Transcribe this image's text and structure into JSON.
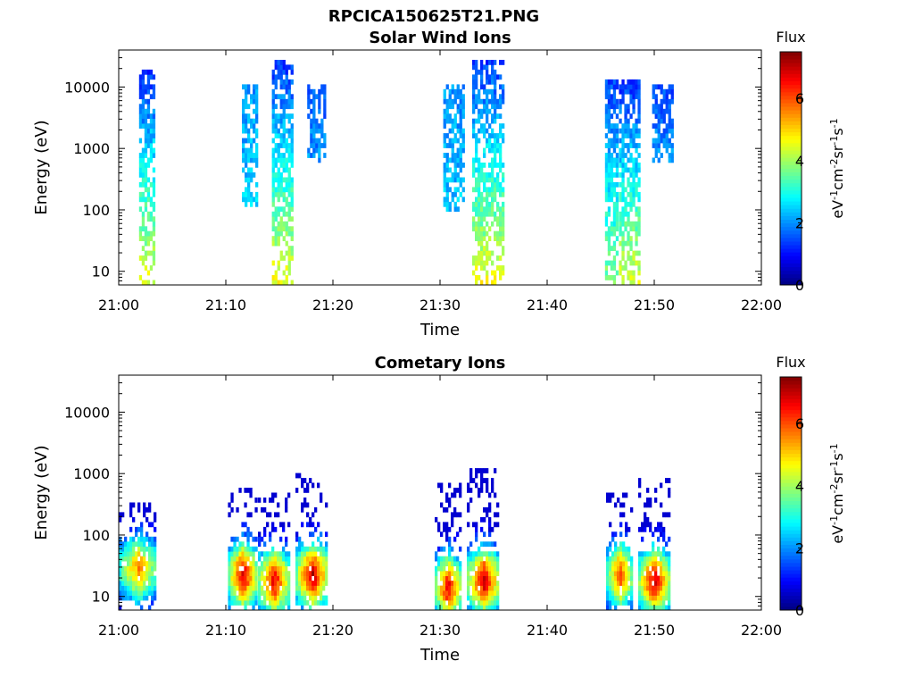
{
  "figure": {
    "title": "RPCICA150625T21.PNG"
  },
  "colormap": "jet",
  "chart_data": [
    {
      "type": "heatmap",
      "title": "Solar Wind Ions",
      "xlabel": "Time",
      "ylabel": "Energy (eV)",
      "x_ticks": [
        "21:00",
        "21:10",
        "21:20",
        "21:30",
        "21:40",
        "21:50",
        "22:00"
      ],
      "x_range_min": [
        0,
        60
      ],
      "y_ticks": [
        "10",
        "100",
        "1000",
        "10000"
      ],
      "y_scale": "log",
      "y_range": [
        6,
        40000
      ],
      "colorbar": {
        "label_top": "Flux",
        "label": "eV-1cm-2sr-1s-1",
        "ticks": [
          "0",
          "2",
          "4",
          "6"
        ],
        "range": [
          0,
          7.5
        ]
      },
      "bursts": [
        {
          "t_start_min": 1.9,
          "t_end_min": 3.4,
          "e_min_ev": 6,
          "e_max_ev": 19000,
          "flux_low_e": 4.5,
          "flux_high_e": 1.3
        },
        {
          "t_start_min": 11.5,
          "t_end_min": 13.0,
          "e_min_ev": 120,
          "e_max_ev": 11000,
          "flux_low_e": 2.5,
          "flux_high_e": 2.0
        },
        {
          "t_start_min": 14.3,
          "t_end_min": 16.2,
          "e_min_ev": 6,
          "e_max_ev": 27000,
          "flux_low_e": 4.6,
          "flux_high_e": 1.3
        },
        {
          "t_start_min": 17.6,
          "t_end_min": 19.3,
          "e_min_ev": 600,
          "e_max_ev": 12000,
          "flux_low_e": 2.0,
          "flux_high_e": 1.6
        },
        {
          "t_start_min": 30.3,
          "t_end_min": 32.2,
          "e_min_ev": 100,
          "e_max_ev": 12000,
          "flux_low_e": 2.4,
          "flux_high_e": 2.0
        },
        {
          "t_start_min": 33.0,
          "t_end_min": 35.8,
          "e_min_ev": 6,
          "e_max_ev": 27000,
          "flux_low_e": 4.6,
          "flux_high_e": 1.3
        },
        {
          "t_start_min": 45.4,
          "t_end_min": 46.6,
          "e_min_ev": 6,
          "e_max_ev": 14000,
          "flux_low_e": 3.8,
          "flux_high_e": 1.4
        },
        {
          "t_start_min": 46.7,
          "t_end_min": 48.5,
          "e_min_ev": 6,
          "e_max_ev": 14000,
          "flux_low_e": 4.4,
          "flux_high_e": 1.2
        },
        {
          "t_start_min": 49.8,
          "t_end_min": 51.6,
          "e_min_ev": 600,
          "e_max_ev": 12000,
          "flux_low_e": 2.0,
          "flux_high_e": 1.5
        }
      ]
    },
    {
      "type": "heatmap",
      "title": "Cometary Ions",
      "xlabel": "Time",
      "ylabel": "Energy (eV)",
      "x_ticks": [
        "21:00",
        "21:10",
        "21:20",
        "21:30",
        "21:40",
        "21:50",
        "22:00"
      ],
      "x_range_min": [
        0,
        60
      ],
      "y_ticks": [
        "10",
        "100",
        "1000",
        "10000"
      ],
      "y_scale": "log",
      "y_range": [
        6,
        40000
      ],
      "colorbar": {
        "label_top": "Flux",
        "label": "eV-1cm-2sr-1s-1",
        "ticks": [
          "0",
          "2",
          "4",
          "6"
        ],
        "range": [
          0,
          7.5
        ]
      },
      "bursts": [
        {
          "t_start_min": 0.0,
          "t_end_min": 3.5,
          "e_min_ev": 6,
          "e_max_ev": 350,
          "e_peak_ev": 28,
          "peak_flux": 5.6
        },
        {
          "t_start_min": 10.2,
          "t_end_min": 12.8,
          "e_min_ev": 6,
          "e_max_ev": 550,
          "e_peak_ev": 22,
          "peak_flux": 7.0
        },
        {
          "t_start_min": 13.0,
          "t_end_min": 15.8,
          "e_min_ev": 6,
          "e_max_ev": 500,
          "e_peak_ev": 18,
          "peak_flux": 6.8
        },
        {
          "t_start_min": 16.5,
          "t_end_min": 19.5,
          "e_min_ev": 6,
          "e_max_ev": 1100,
          "e_peak_ev": 22,
          "peak_flux": 7.0
        },
        {
          "t_start_min": 29.5,
          "t_end_min": 31.8,
          "e_min_ev": 6,
          "e_max_ev": 700,
          "e_peak_ev": 14,
          "peak_flux": 6.8
        },
        {
          "t_start_min": 32.5,
          "t_end_min": 35.5,
          "e_min_ev": 6,
          "e_max_ev": 1300,
          "e_peak_ev": 18,
          "peak_flux": 6.9
        },
        {
          "t_start_min": 45.5,
          "t_end_min": 47.9,
          "e_min_ev": 6,
          "e_max_ev": 450,
          "e_peak_ev": 22,
          "peak_flux": 6.2
        },
        {
          "t_start_min": 48.5,
          "t_end_min": 51.3,
          "e_min_ev": 6,
          "e_max_ev": 800,
          "e_peak_ev": 18,
          "peak_flux": 7.0
        }
      ]
    }
  ]
}
